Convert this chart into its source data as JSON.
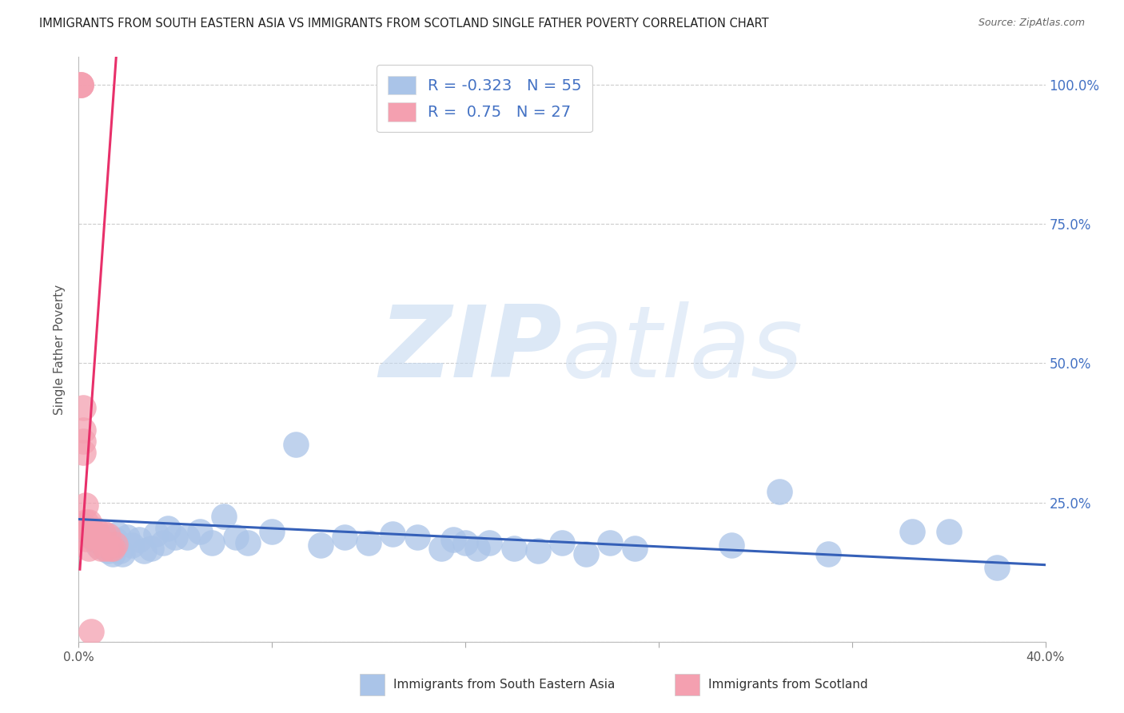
{
  "title": "IMMIGRANTS FROM SOUTH EASTERN ASIA VS IMMIGRANTS FROM SCOTLAND SINGLE FATHER POVERTY CORRELATION CHART",
  "source": "Source: ZipAtlas.com",
  "ylabel": "Single Father Poverty",
  "legend_label1": "Immigrants from South Eastern Asia",
  "legend_label2": "Immigrants from Scotland",
  "R1": -0.323,
  "N1": 55,
  "R2": 0.75,
  "N2": 27,
  "color_blue": "#aac4e8",
  "color_pink": "#f4a0b0",
  "color_blue_line": "#3560b8",
  "color_pink_line": "#e8306a",
  "color_text_blue": "#4472c4",
  "color_label_dark": "#333333",
  "watermark_zip": "ZIP",
  "watermark_atlas": "atlas",
  "xlim": [
    0.0,
    0.4
  ],
  "ylim": [
    0.0,
    1.05
  ],
  "ytick_positions": [
    0.0,
    0.25,
    0.5,
    0.75,
    1.0
  ],
  "ytick_labels_right": [
    "",
    "25.0%",
    "50.0%",
    "75.0%",
    "100.0%"
  ],
  "xtick_positions": [
    0.0,
    0.08,
    0.16,
    0.24,
    0.32,
    0.4
  ],
  "xtick_labels": [
    "0.0%",
    "",
    "",
    "",
    "",
    "40.0%"
  ],
  "blue_scatter_x": [
    0.002,
    0.004,
    0.005,
    0.006,
    0.007,
    0.008,
    0.009,
    0.01,
    0.011,
    0.012,
    0.013,
    0.014,
    0.015,
    0.016,
    0.017,
    0.018,
    0.02,
    0.022,
    0.025,
    0.027,
    0.03,
    0.032,
    0.035,
    0.037,
    0.04,
    0.045,
    0.05,
    0.055,
    0.06,
    0.065,
    0.07,
    0.08,
    0.09,
    0.1,
    0.11,
    0.12,
    0.13,
    0.14,
    0.15,
    0.155,
    0.16,
    0.165,
    0.17,
    0.18,
    0.19,
    0.2,
    0.21,
    0.22,
    0.23,
    0.27,
    0.29,
    0.31,
    0.345,
    0.36,
    0.38
  ],
  "blue_scatter_y": [
    0.21,
    0.195,
    0.19,
    0.185,
    0.192,
    0.172,
    0.178,
    0.188,
    0.183,
    0.163,
    0.173,
    0.158,
    0.183,
    0.193,
    0.163,
    0.158,
    0.188,
    0.173,
    0.183,
    0.163,
    0.168,
    0.193,
    0.178,
    0.203,
    0.188,
    0.188,
    0.198,
    0.178,
    0.225,
    0.188,
    0.178,
    0.198,
    0.355,
    0.173,
    0.188,
    0.178,
    0.193,
    0.188,
    0.168,
    0.183,
    0.178,
    0.168,
    0.178,
    0.168,
    0.163,
    0.178,
    0.158,
    0.178,
    0.168,
    0.173,
    0.27,
    0.158,
    0.198,
    0.198,
    0.133
  ],
  "pink_scatter_x": [
    0.001,
    0.001,
    0.001,
    0.002,
    0.002,
    0.002,
    0.002,
    0.003,
    0.003,
    0.003,
    0.003,
    0.004,
    0.004,
    0.004,
    0.005,
    0.005,
    0.005,
    0.006,
    0.007,
    0.008,
    0.009,
    0.01,
    0.011,
    0.012,
    0.013,
    0.014,
    0.015
  ],
  "pink_scatter_y": [
    1.0,
    1.0,
    1.0,
    0.42,
    0.38,
    0.36,
    0.34,
    0.245,
    0.215,
    0.205,
    0.185,
    0.215,
    0.2,
    0.168,
    0.2,
    0.19,
    0.018,
    0.19,
    0.2,
    0.188,
    0.168,
    0.195,
    0.168,
    0.19,
    0.168,
    0.168,
    0.175
  ],
  "blue_trendline_x": [
    0.0,
    0.4
  ],
  "blue_trendline_y": [
    0.22,
    0.138
  ],
  "pink_trendline_x": [
    0.0005,
    0.0155
  ],
  "pink_trendline_y": [
    0.13,
    1.05
  ]
}
